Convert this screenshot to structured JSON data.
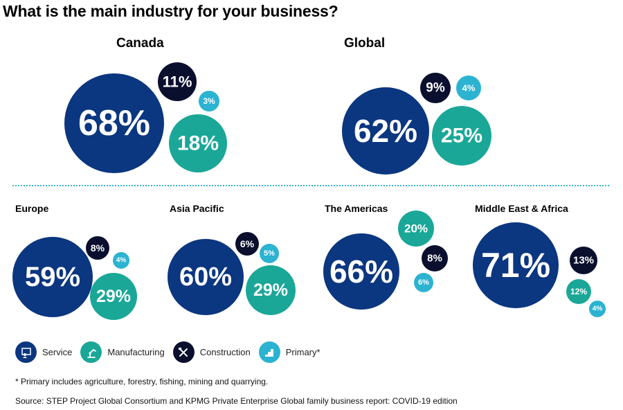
{
  "title": "What is the main industry for your business?",
  "colors": {
    "service": "#0b3680",
    "manufacturing": "#1aa798",
    "construction": "#0b0f2e",
    "primary": "#2bb3d1",
    "divider": "#34b3d0"
  },
  "legend": [
    {
      "key": "service",
      "label": "Service",
      "icon": "presenter-icon"
    },
    {
      "key": "manufacturing",
      "label": "Manufacturing",
      "icon": "robot-arm-icon"
    },
    {
      "key": "construction",
      "label": "Construction",
      "icon": "crossed-tools-icon"
    },
    {
      "key": "primary",
      "label": "Primary*",
      "icon": "stairs-icon"
    }
  ],
  "footnote": "* Primary includes agriculture, forestry, fishing, mining and quarrying.",
  "source": "Source: STEP Project Global Consortium and KPMG Private Enterprise Global family business report: COVID-19 edition",
  "chart_data": [
    {
      "type": "bubble",
      "title": "Canada",
      "categories": [
        "Service",
        "Manufacturing",
        "Construction",
        "Primary"
      ],
      "values": [
        68,
        18,
        11,
        3
      ],
      "unit": "%"
    },
    {
      "type": "bubble",
      "title": "Global",
      "categories": [
        "Service",
        "Manufacturing",
        "Construction",
        "Primary"
      ],
      "values": [
        62,
        25,
        9,
        4
      ],
      "unit": "%"
    },
    {
      "type": "bubble",
      "title": "Europe",
      "categories": [
        "Service",
        "Manufacturing",
        "Construction",
        "Primary"
      ],
      "values": [
        59,
        29,
        8,
        4
      ],
      "unit": "%"
    },
    {
      "type": "bubble",
      "title": "Asia Pacific",
      "categories": [
        "Service",
        "Manufacturing",
        "Construction",
        "Primary"
      ],
      "values": [
        60,
        29,
        6,
        5
      ],
      "unit": "%"
    },
    {
      "type": "bubble",
      "title": "The Americas",
      "categories": [
        "Service",
        "Manufacturing",
        "Construction",
        "Primary"
      ],
      "values": [
        66,
        20,
        8,
        6
      ],
      "unit": "%"
    },
    {
      "type": "bubble",
      "title": "Middle East & Africa",
      "categories": [
        "Service",
        "Manufacturing",
        "Construction",
        "Primary"
      ],
      "values": [
        71,
        12,
        13,
        4
      ],
      "unit": "%"
    }
  ]
}
